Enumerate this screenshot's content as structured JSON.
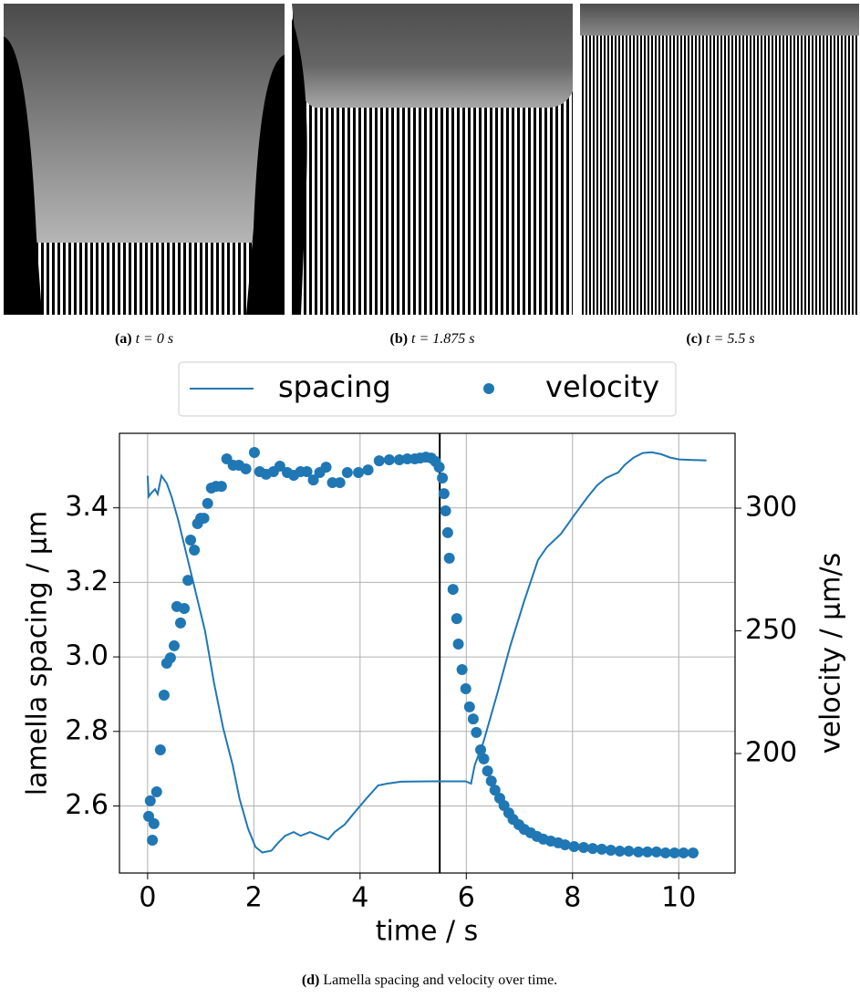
{
  "captions": {
    "a": {
      "tag": "(a)",
      "text": "t = 0 s"
    },
    "b": {
      "tag": "(b)",
      "text": "t = 1.875 s"
    },
    "c": {
      "tag": "(c)",
      "text": "t = 5.5 s"
    },
    "d": {
      "tag": "(d)",
      "text": "Lamella spacing and velocity over time."
    }
  },
  "chart_data": {
    "type": "line",
    "xlabel": "time / s",
    "ylabel": "lamella spacing / µm",
    "y2label": "velocity / µm/s",
    "xlim": [
      -0.53,
      11.06
    ],
    "xticks": [
      0,
      2,
      4,
      6,
      8,
      10
    ],
    "ylim": [
      2.42,
      3.6
    ],
    "yticks": [
      {
        "value": 2.6,
        "label": "2.6"
      },
      {
        "value": 2.8,
        "label": "2.8"
      },
      {
        "value": 3.0,
        "label": "3.0"
      },
      {
        "value": 3.2,
        "label": "3.2"
      },
      {
        "value": 3.4,
        "label": "3.4"
      }
    ],
    "y2lim": [
      151.3,
      330.5
    ],
    "y2ticks": [
      200,
      250,
      300
    ],
    "grid": true,
    "legend": "top",
    "vline_x": 5.5,
    "series": [
      {
        "name": "spacing",
        "color": "#1f77b4",
        "style": "line",
        "axis": "y",
        "x": [
          0,
          0.02,
          0.07,
          0.14,
          0.19,
          0.26,
          0.36,
          0.45,
          0.57,
          0.74,
          0.91,
          1.08,
          1.25,
          1.42,
          1.6,
          1.73,
          1.89,
          2.03,
          2.16,
          2.33,
          2.45,
          2.59,
          2.75,
          2.88,
          3.06,
          3.23,
          3.4,
          3.52,
          3.71,
          3.91,
          4.12,
          4.34,
          4.51,
          4.77,
          5.29,
          5.8,
          5.99,
          6.09,
          6.16,
          6.32,
          6.58,
          6.83,
          7.09,
          7.35,
          7.52,
          7.78,
          8.03,
          8.29,
          8.46,
          8.63,
          8.86,
          8.98,
          9.15,
          9.32,
          9.49,
          9.67,
          9.84,
          10.01,
          10.52
        ],
        "values": [
          3.486,
          3.43,
          3.44,
          3.45,
          3.437,
          3.486,
          3.466,
          3.43,
          3.37,
          3.27,
          3.17,
          3.07,
          2.93,
          2.81,
          2.71,
          2.62,
          2.54,
          2.49,
          2.475,
          2.48,
          2.5,
          2.52,
          2.53,
          2.52,
          2.53,
          2.52,
          2.51,
          2.53,
          2.55,
          2.585,
          2.62,
          2.655,
          2.66,
          2.665,
          2.666,
          2.666,
          2.666,
          2.66,
          2.71,
          2.77,
          2.9,
          3.03,
          3.15,
          3.26,
          3.295,
          3.33,
          3.38,
          3.43,
          3.46,
          3.48,
          3.495,
          3.515,
          3.535,
          3.547,
          3.549,
          3.544,
          3.535,
          3.53,
          3.527
        ]
      },
      {
        "name": "velocity",
        "color": "#1f77b4",
        "style": "scatter",
        "axis": "y2",
        "x": [
          0.02,
          0.05,
          0.09,
          0.12,
          0.17,
          0.24,
          0.31,
          0.36,
          0.43,
          0.5,
          0.55,
          0.62,
          0.69,
          0.76,
          0.81,
          0.88,
          0.94,
          1.0,
          1.06,
          1.13,
          1.2,
          1.29,
          1.39,
          1.49,
          1.61,
          1.72,
          1.85,
          2.01,
          2.11,
          2.23,
          2.37,
          2.49,
          2.63,
          2.75,
          2.88,
          3.0,
          3.12,
          3.24,
          3.36,
          3.48,
          3.62,
          3.76,
          3.97,
          4.15,
          4.36,
          4.55,
          4.74,
          4.89,
          5.03,
          5.13,
          5.24,
          5.34,
          5.42,
          5.49,
          5.55,
          5.58,
          5.61,
          5.65,
          5.68,
          5.75,
          5.82,
          5.85,
          5.92,
          5.99,
          6.06,
          6.13,
          6.19,
          6.27,
          6.33,
          6.4,
          6.47,
          6.54,
          6.63,
          6.71,
          6.8,
          6.88,
          6.99,
          7.09,
          7.21,
          7.33,
          7.45,
          7.59,
          7.73,
          7.86,
          8.03,
          8.21,
          8.38,
          8.55,
          8.72,
          8.89,
          9.06,
          9.24,
          9.41,
          9.58,
          9.75,
          9.92,
          10.09,
          10.27
        ],
        "values": [
          174.4,
          180.7,
          164.7,
          171.4,
          184.4,
          201.5,
          223.8,
          236.8,
          239.0,
          243.9,
          259.9,
          253.2,
          259.1,
          270.6,
          287.0,
          282.9,
          293.7,
          295.9,
          295.9,
          301.9,
          308.2,
          308.9,
          308.9,
          320.1,
          317.5,
          317.5,
          316.0,
          322.7,
          314.9,
          313.8,
          314.9,
          317.1,
          314.5,
          313.4,
          314.9,
          314.9,
          311.5,
          314.5,
          316.7,
          310.4,
          310.4,
          314.5,
          314.5,
          315.6,
          319.3,
          319.7,
          319.7,
          320.1,
          320.1,
          320.4,
          320.8,
          320.4,
          319.0,
          316.7,
          312.3,
          305.9,
          298.9,
          290.0,
          279.6,
          266.9,
          255.0,
          244.6,
          234.2,
          226.4,
          219.0,
          214.1,
          208.6,
          201.5,
          197.8,
          192.9,
          188.8,
          185.1,
          181.8,
          178.8,
          175.8,
          173.2,
          171.0,
          169.1,
          167.7,
          166.2,
          165.1,
          164.3,
          163.6,
          162.8,
          162.1,
          161.7,
          161.3,
          161.0,
          160.6,
          160.2,
          160.2,
          159.9,
          159.9,
          159.9,
          159.5,
          159.5,
          159.5,
          159.5
        ]
      }
    ]
  }
}
